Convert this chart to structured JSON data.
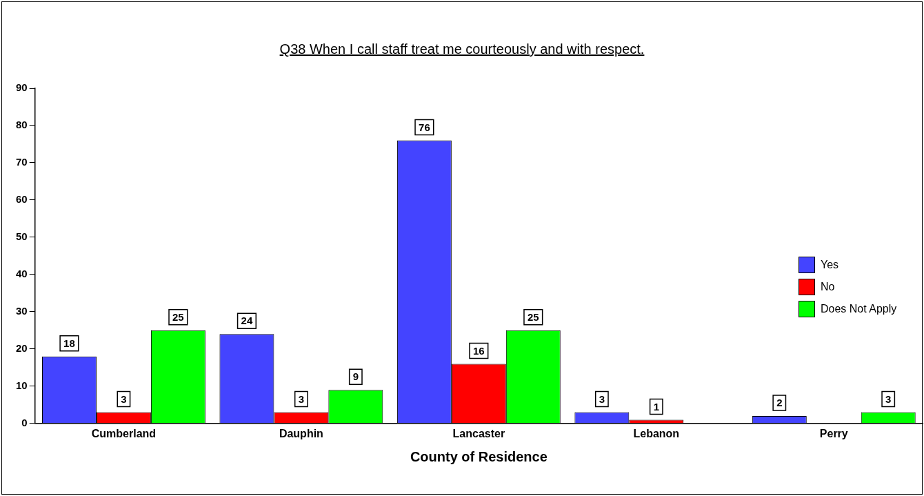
{
  "chart_data": {
    "type": "bar",
    "title": "Q38 When I call staff treat me courteously and with respect.",
    "xlabel": "County of Residence",
    "categories": [
      "Cumberland",
      "Dauphin",
      "Lancaster",
      "Lebanon",
      "Perry"
    ],
    "series": [
      {
        "name": "Yes",
        "color": "#4444ff",
        "values": [
          18,
          24,
          76,
          3,
          2
        ],
        "value_labels": [
          "18",
          "24",
          "76",
          "3",
          "2"
        ]
      },
      {
        "name": "No",
        "color": "#ff0000",
        "values": [
          3,
          3,
          16,
          1,
          0
        ],
        "value_labels": [
          "3",
          "3",
          "16",
          "1",
          null
        ]
      },
      {
        "name": "Does Not Apply",
        "color": "#00ff00",
        "values": [
          25,
          9,
          25,
          0,
          3
        ],
        "value_labels": [
          "25",
          "9",
          "25",
          null,
          "3"
        ]
      }
    ],
    "ylim": [
      0,
      90
    ],
    "yticks": [
      0,
      10,
      20,
      30,
      40,
      50,
      60,
      70,
      80,
      90
    ],
    "grid": false,
    "legend": "right"
  }
}
